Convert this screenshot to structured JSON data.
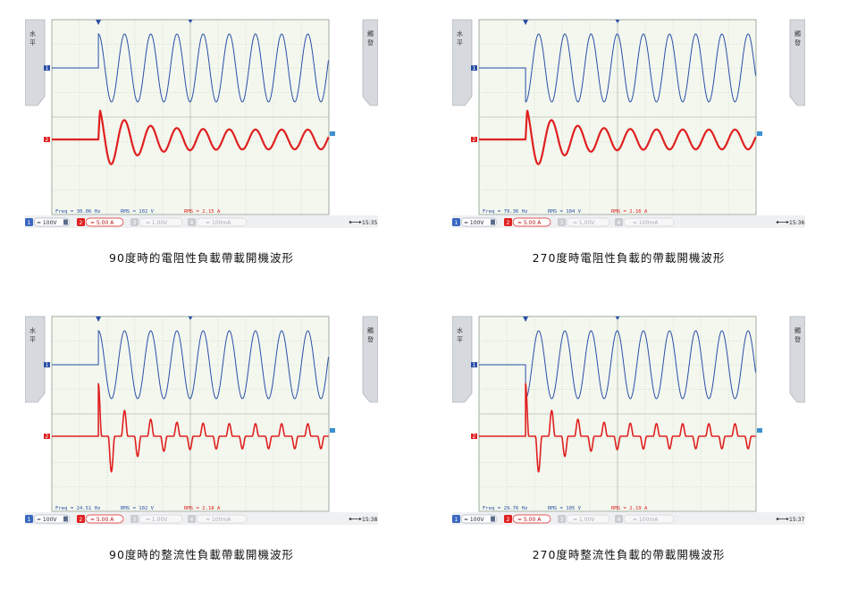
{
  "panels": [
    {
      "caption": "90度時的電阻性負載帶載開機波形",
      "freq": "Freq = 30.06 Hz",
      "rms_v": "RMS = 102 V",
      "rms_a": "RMS = 2.15 A",
      "ch1": "= 100V",
      "ch2": "= 5.00 A",
      "ch3": "= 1.00V",
      "ch4": "= 100mA",
      "time": "15:35",
      "left_label": "水平",
      "right_label": "觸發",
      "trigger": "90°",
      "load": "resistive"
    },
    {
      "caption": "270度時電阻性負載的帶載開機波形",
      "freq": "Freq = 79.36 Hz",
      "rms_v": "RMS = 104 V",
      "rms_a": "RMS = 2.16 A",
      "ch1": "= 100V",
      "ch2": "= 5.00 A",
      "ch3": "= 1.00V",
      "ch4": "= 100mA",
      "time": "15:36",
      "left_label": "水平",
      "right_label": "觸發",
      "trigger": "270°",
      "load": "resistive"
    },
    {
      "caption": "90度時的整流性負載帶載開機波形",
      "freq": "Freq = 24.51 Hz",
      "rms_v": "RMS = 102 V",
      "rms_a": "RMS = 2.18 A",
      "ch1": "= 100V",
      "ch2": "= 5.00 A",
      "ch3": "= 1.00V",
      "ch4": "= 100mA",
      "time": "15:38",
      "left_label": "水平",
      "right_label": "觸發",
      "trigger": "90°",
      "load": "rectifier"
    },
    {
      "caption": "270度時整流性負載的帶載開機波形",
      "freq": "Freq = 29.76 Hz",
      "rms_v": "RMS = 105 V",
      "rms_a": "RMS = 2.19 A",
      "ch1": "= 100V",
      "ch2": "= 5.00 A",
      "ch3": "= 1.00V",
      "ch4": "= 100mA",
      "time": "15:37",
      "left_label": "水平",
      "right_label": "觸發",
      "trigger": "270°",
      "load": "rectifier"
    }
  ],
  "colors": {
    "voltage": "#2b4fa8",
    "current": "#e02020",
    "grid_bg": "#f3f7ee",
    "grid_line": "#b7c6b7",
    "chrome": "#d6dade"
  },
  "icons": {
    "usb": "usb-icon",
    "trigger_marker": "trigger-marker-icon",
    "ch1_marker": "ch1-marker-icon",
    "ch2_marker": "ch2-marker-icon"
  }
}
